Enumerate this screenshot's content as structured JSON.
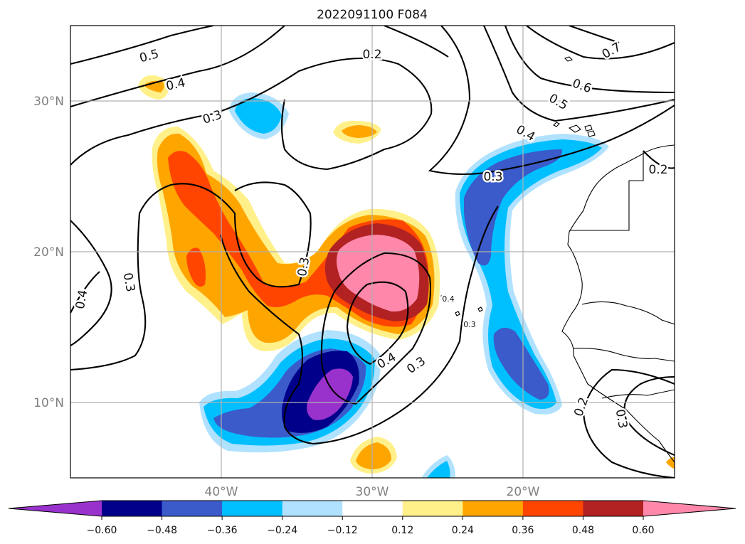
{
  "chart_data": {
    "type": "contour_map",
    "title": "2022091100 F084",
    "map": {
      "lon_range": [
        -50,
        -10
      ],
      "lat_range": [
        5,
        35
      ],
      "gridlines": true,
      "xticks": [
        {
          "value": -40,
          "label": "40°W"
        },
        {
          "value": -30,
          "label": "30°W"
        },
        {
          "value": -20,
          "label": "20°W"
        }
      ],
      "yticks": [
        {
          "value": 10,
          "label": "10°N"
        },
        {
          "value": 20,
          "label": "20°N"
        },
        {
          "value": 30,
          "label": "30°N"
        }
      ]
    },
    "colorbar": {
      "orientation": "horizontal",
      "position": "bottom",
      "extend": "both",
      "boundaries": [
        -0.6,
        -0.48,
        -0.36,
        -0.24,
        -0.12,
        0.12,
        0.24,
        0.36,
        0.48,
        0.6
      ],
      "tick_labels": [
        "−0.60",
        "−0.48",
        "−0.36",
        "−0.24",
        "−0.12",
        "0.12",
        "0.24",
        "0.36",
        "0.48",
        "0.60"
      ],
      "colors": [
        "#9932cc",
        "#00008b",
        "#3a5bc9",
        "#00bfff",
        "#b0e2ff",
        "#ffffff",
        "#fff08a",
        "#ffa500",
        "#ff4500",
        "#b22222",
        "#ff88aa"
      ]
    },
    "contour_labels": [
      "0.5",
      "0.4",
      "0.3",
      "0.2",
      "0.3",
      "0.4",
      "0.7",
      "0.6",
      "0.5",
      "0.4",
      "0.3",
      "0.2",
      "0.3",
      "0.4",
      "0.3",
      "0.4",
      "0.3",
      "0.2",
      "0.3"
    ]
  }
}
